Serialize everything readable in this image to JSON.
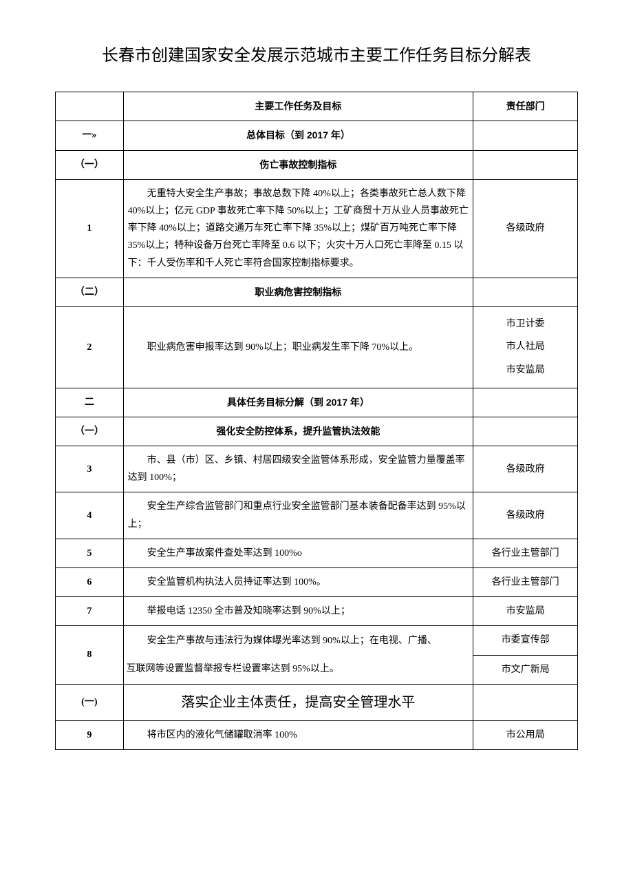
{
  "title": "长春市创建国家安全发展示范城市主要工作任务目标分解表",
  "headers": {
    "task": "主要工作任务及目标",
    "dept": "责任部门"
  },
  "sections": {
    "s1_idx": "一»",
    "s1_label": "总体目标（到 2017 年）",
    "s1a_idx": "（一）",
    "s1a_label": "伤亡事故控制指标",
    "s1b_idx": "（二）",
    "s1b_label": "职业病危害控制指标",
    "s2_idx": "二",
    "s2_label": "具体任务目标分解（到 2017 年）",
    "s2a_idx": "（一）",
    "s2a_label": "强化安全防控体系，提升监管执法效能",
    "s2b_idx": "(一)",
    "s2b_label": "落实企业主体责任，提高安全管理水平"
  },
  "rows": {
    "r1_idx": "1",
    "r1_task": "无重特大安全生产事故；事故总数下降 40%以上；各类事故死亡总人数下降 40%以上；亿元 GDP 事故死亡率下降 50%以上；工矿商贸十万从业人员事故死亡率下降 40%以上；道路交通万车死亡率下降 35%以上；煤矿百万吨死亡率下降 35%以上；特种设备万台死亡率降至 0.6 以下；火灾十万人口死亡率降至 0.15 以下：千人受伤率和千人死亡率符合国家控制指标要求。",
    "r1_dept": "各级政府",
    "r2_idx": "2",
    "r2_task": "职业病危害申报率达到 90%以上；职业病发生率下降 70%以上。",
    "r2_dept": "市卫计委\n市人社局\n市安监局",
    "r3_idx": "3",
    "r3_task": "市、县（市）区、乡镇、村居四级安全监管体系形成，安全监管力量覆盖率达到 100%；",
    "r3_dept": "各级政府",
    "r4_idx": "4",
    "r4_task": "安全生产综合监管部门和重点行业安全监管部门基本装备配备率达到 95%以上；",
    "r4_dept": "各级政府",
    "r5_idx": "5",
    "r5_task": "安全生产事故案件查处率达到 100%o",
    "r5_dept": "各行业主管部门",
    "r6_idx": "6",
    "r6_task": "安全监管机构执法人员持证率达到 100%。",
    "r6_dept": "各行业主管部门",
    "r7_idx": "7",
    "r7_task": "举报电话 12350 全市普及知晓率达到 90%以上；",
    "r7_dept": "市安监局",
    "r8_idx": "8",
    "r8_task_a": "安全生产事故与违法行为媒体曝光率达到 90%以上；在电视、广播、",
    "r8_task_b": "互联网等设置监督举报专栏设置率达到 95%以上。",
    "r8_dept_a": "市委宣传部",
    "r8_dept_b": "市文广新局",
    "r9_idx": "9",
    "r9_task": "将市区内的液化气储罐取消率 100%",
    "r9_dept": "市公用局"
  },
  "styling": {
    "page_bg": "#ffffff",
    "text_color": "#000000",
    "border_color": "#000000",
    "title_fontsize": 24,
    "body_fontsize": 14,
    "section_big_fontsize": 20,
    "col_widths_pct": [
      13,
      67,
      20
    ]
  }
}
